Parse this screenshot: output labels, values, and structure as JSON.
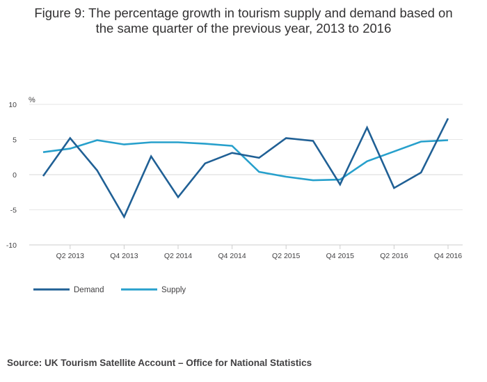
{
  "title": {
    "line1": "Figure 9: The percentage growth in tourism supply and demand based on",
    "line2": "the same quarter of the previous year, 2013 to 2016"
  },
  "source": "Source: UK Tourism Satellite Account – Office for National Statistics",
  "colors": {
    "demand": "#206095",
    "supply": "#27a0cc",
    "grid": "#e6e6e6",
    "axis": "#cccccc",
    "text": "#414042"
  },
  "chart_data": {
    "type": "line",
    "title": "Figure 9: The percentage growth in tourism supply and demand based on the same quarter of the previous year, 2013 to 2016",
    "xlabel": "",
    "ylabel": "%",
    "ylim": [
      -10,
      10
    ],
    "yticks": [
      10,
      5,
      0,
      -5,
      -10
    ],
    "ytick_labels": [
      "10",
      "5",
      "0",
      "-5",
      "-10"
    ],
    "categories": [
      "Q1 2013",
      "Q2 2013",
      "Q3 2013",
      "Q4 2013",
      "Q1 2014",
      "Q2 2014",
      "Q3 2014",
      "Q4 2014",
      "Q1 2015",
      "Q2 2015",
      "Q3 2015",
      "Q4 2015",
      "Q1 2016",
      "Q2 2016",
      "Q3 2016",
      "Q4 2016"
    ],
    "tick_labels": [
      "Q2 2013",
      "Q4 2013",
      "Q2 2014",
      "Q4 2014",
      "Q2 2015",
      "Q4 2015",
      "Q2 2016",
      "Q4 2016"
    ],
    "tick_indices": [
      1,
      3,
      5,
      7,
      9,
      11,
      13,
      15
    ],
    "grid": true,
    "legend_position": "bottom-left",
    "series": [
      {
        "name": "Demand",
        "values": [
          -0.2,
          5.2,
          0.6,
          -6.0,
          2.6,
          -3.2,
          1.6,
          3.1,
          2.4,
          5.2,
          4.8,
          -1.4,
          6.7,
          -1.9,
          0.3,
          8.0
        ]
      },
      {
        "name": "Supply",
        "values": [
          3.2,
          3.7,
          4.9,
          4.3,
          4.6,
          4.6,
          4.4,
          4.1,
          0.4,
          -0.3,
          -0.8,
          -0.7,
          1.9,
          3.3,
          4.7,
          4.9
        ]
      }
    ]
  }
}
